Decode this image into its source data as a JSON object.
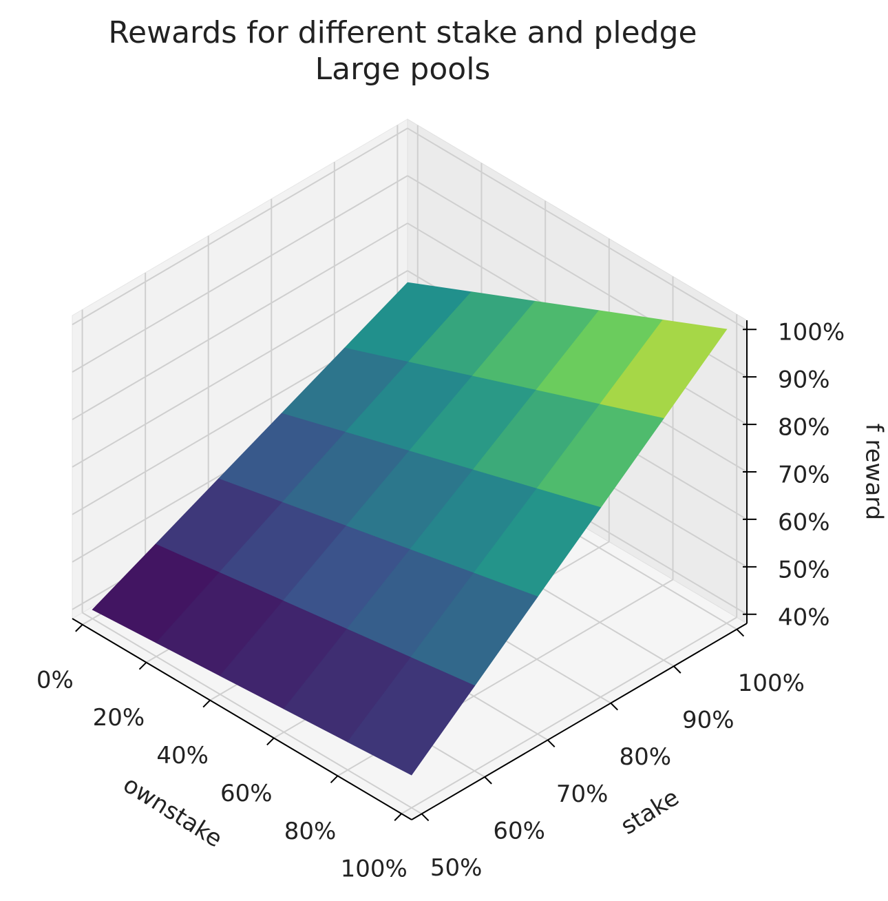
{
  "chart_data": {
    "type": "surface3d",
    "title": "Rewards for different stake and pledge",
    "subtitle": "Large pools",
    "xlabel": "ownstake",
    "ylabel": "stake",
    "zlabel": "f reward",
    "x": [
      0,
      20,
      40,
      60,
      80,
      100
    ],
    "y": [
      50,
      60,
      70,
      80,
      90,
      100
    ],
    "z": [
      [
        40,
        41,
        42,
        43,
        44,
        45
      ],
      [
        46,
        48,
        50,
        52,
        54,
        56
      ],
      [
        52,
        55,
        58,
        61,
        64,
        67
      ],
      [
        58,
        62,
        66,
        70,
        74,
        78
      ],
      [
        64,
        69,
        74,
        79,
        84,
        89
      ],
      [
        70,
        76,
        82,
        88,
        94,
        100
      ]
    ],
    "colormap": "viridis",
    "xlim": [
      0,
      100
    ],
    "ylim": [
      50,
      100
    ],
    "zlim": [
      40,
      100
    ],
    "xticks": [
      {
        "value": 0,
        "label": "0%"
      },
      {
        "value": 20,
        "label": "20%"
      },
      {
        "value": 40,
        "label": "40%"
      },
      {
        "value": 60,
        "label": "60%"
      },
      {
        "value": 80,
        "label": "80%"
      },
      {
        "value": 100,
        "label": "100%"
      }
    ],
    "yticks": [
      {
        "value": 50,
        "label": "50%"
      },
      {
        "value": 60,
        "label": "60%"
      },
      {
        "value": 70,
        "label": "70%"
      },
      {
        "value": 80,
        "label": "80%"
      },
      {
        "value": 90,
        "label": "90%"
      },
      {
        "value": 100,
        "label": "100%"
      }
    ],
    "zticks": [
      {
        "value": 40,
        "label": "40%"
      },
      {
        "value": 50,
        "label": "50%"
      },
      {
        "value": 60,
        "label": "60%"
      },
      {
        "value": 70,
        "label": "70%"
      },
      {
        "value": 80,
        "label": "80%"
      },
      {
        "value": 90,
        "label": "90%"
      },
      {
        "value": 100,
        "label": "100%"
      }
    ],
    "grid": true
  }
}
